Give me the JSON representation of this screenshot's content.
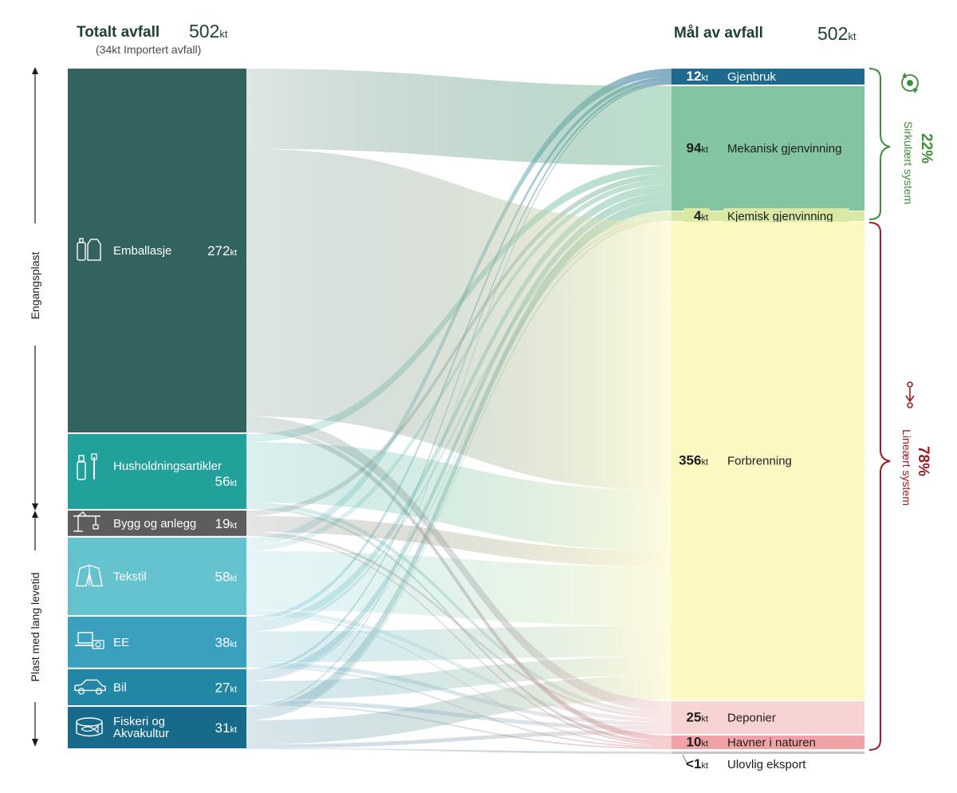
{
  "header": {
    "left_title": "Totalt avfall",
    "left_total_value": "502",
    "left_total_unit": "kt",
    "left_subtitle": "(34kt Importert avfall)",
    "right_title": "Mål av avfall",
    "right_total_value": "502",
    "right_total_unit": "kt"
  },
  "side_labels": {
    "top": "Engangsplast",
    "bottom": "Plast med lang levetid"
  },
  "sources": [
    {
      "id": "emballasje",
      "label": "Emballasje",
      "value": 272,
      "value_text": "272",
      "unit": "kt",
      "color": "#33635e",
      "icon": "bottle-and-carton-icon"
    },
    {
      "id": "husholdning",
      "label": "Husholdningsartikler",
      "value": 56,
      "value_text": "56",
      "unit": "kt",
      "color": "#22a09a",
      "icon": "spray-and-toothbrush-icon"
    },
    {
      "id": "bygg",
      "label": "Bygg og anlegg",
      "value": 19,
      "value_text": "19",
      "unit": "kt",
      "color": "#5d5d5b",
      "icon": "crane-icon"
    },
    {
      "id": "tekstil",
      "label": "Tekstil",
      "value": 58,
      "value_text": "58",
      "unit": "kt",
      "color": "#64c3cf",
      "icon": "jacket-icon"
    },
    {
      "id": "ee",
      "label": "EE",
      "value": 38,
      "value_text": "38",
      "unit": "kt",
      "color": "#3aa0bd",
      "icon": "laptop-and-camera-icon"
    },
    {
      "id": "bil",
      "label": "Bil",
      "value": 27,
      "value_text": "27",
      "unit": "kt",
      "color": "#2286a5",
      "icon": "car-icon"
    },
    {
      "id": "fiskeri",
      "label": "Fiskeri og",
      "label2": "Akvakultur",
      "value": 31,
      "value_text": "31",
      "unit": "kt",
      "color": "#176a89",
      "icon": "fish-tin-icon"
    }
  ],
  "targets": [
    {
      "id": "gjenbruk",
      "label": "Gjenbruk",
      "value": 12,
      "value_text": "12",
      "unit": "kt",
      "color": "#1d6a8e",
      "text_color": "#ffffff"
    },
    {
      "id": "mekanisk",
      "label": "Mekanisk gjenvinning",
      "value": 94,
      "value_text": "94",
      "unit": "kt",
      "color": "#83c5a1",
      "text_color": "#1d1d1d"
    },
    {
      "id": "kjemisk",
      "label": "Kjemisk gjenvinning",
      "value": 4,
      "value_text": "4",
      "unit": "kt",
      "color": "#d9e9a3",
      "text_color": "#1d1d1d"
    },
    {
      "id": "forbrenning",
      "label": "Forbrenning",
      "value": 356,
      "value_text": "356",
      "unit": "kt",
      "color": "#fdf7c2",
      "text_color": "#1d1d1d"
    },
    {
      "id": "deponier",
      "label": "Deponier",
      "value": 25,
      "value_text": "25",
      "unit": "kt",
      "color": "#f8d3d3",
      "text_color": "#1d1d1d"
    },
    {
      "id": "havner",
      "label": "Havner i naturen",
      "value": 10,
      "value_text": "10",
      "unit": "kt",
      "color": "#f0a3a6",
      "text_color": "#1d1d1d"
    },
    {
      "id": "ulovlig",
      "label": "Ulovlig eksport",
      "value": 0.5,
      "value_text": "<1",
      "unit": "kt",
      "color": "#c4c6c9",
      "text_color": "#1d1d1d"
    }
  ],
  "groups": [
    {
      "id": "sirkulaert",
      "percent": "22%",
      "label": "Sirkulært system",
      "color": "#3f8d3b",
      "icon": "recycle-icon"
    },
    {
      "id": "linaert",
      "percent": "78%",
      "label": "Lineært system",
      "color": "#9d1c24",
      "icon": "linear-arrow-icon"
    }
  ],
  "chart_data": {
    "type": "sankey",
    "unit": "kt",
    "nodes_left": [
      "Emballasje",
      "Husholdningsartikler",
      "Bygg og anlegg",
      "Tekstil",
      "EE",
      "Bil",
      "Fiskeri og Akvakultur"
    ],
    "nodes_right": [
      "Gjenbruk",
      "Mekanisk gjenvinning",
      "Kjemisk gjenvinning",
      "Forbrenning",
      "Deponier",
      "Havner i naturen",
      "Ulovlig eksport"
    ],
    "links": [
      {
        "source": "emballasje",
        "target": "mekanisk",
        "value": 60
      },
      {
        "source": "emballasje",
        "target": "forbrenning",
        "value": 200
      },
      {
        "source": "emballasje",
        "target": "deponier",
        "value": 8
      },
      {
        "source": "emballasje",
        "target": "havner",
        "value": 4
      },
      {
        "source": "husholdning",
        "target": "mekanisk",
        "value": 6
      },
      {
        "source": "husholdning",
        "target": "forbrenning",
        "value": 45
      },
      {
        "source": "husholdning",
        "target": "deponier",
        "value": 3
      },
      {
        "source": "husholdning",
        "target": "havner",
        "value": 2
      },
      {
        "source": "bygg",
        "target": "mekanisk",
        "value": 4
      },
      {
        "source": "bygg",
        "target": "forbrenning",
        "value": 12
      },
      {
        "source": "bygg",
        "target": "deponier",
        "value": 2
      },
      {
        "source": "bygg",
        "target": "havner",
        "value": 1
      },
      {
        "source": "tekstil",
        "target": "gjenbruk",
        "value": 6
      },
      {
        "source": "tekstil",
        "target": "mekanisk",
        "value": 4
      },
      {
        "source": "tekstil",
        "target": "forbrenning",
        "value": 44
      },
      {
        "source": "tekstil",
        "target": "deponier",
        "value": 3
      },
      {
        "source": "tekstil",
        "target": "havner",
        "value": 1
      },
      {
        "source": "ee",
        "target": "gjenbruk",
        "value": 3
      },
      {
        "source": "ee",
        "target": "mekanisk",
        "value": 6
      },
      {
        "source": "ee",
        "target": "kjemisk",
        "value": 2
      },
      {
        "source": "ee",
        "target": "forbrenning",
        "value": 23
      },
      {
        "source": "ee",
        "target": "deponier",
        "value": 3
      },
      {
        "source": "ee",
        "target": "havner",
        "value": 1
      },
      {
        "source": "bil",
        "target": "gjenbruk",
        "value": 2
      },
      {
        "source": "bil",
        "target": "mekanisk",
        "value": 6
      },
      {
        "source": "bil",
        "target": "kjemisk",
        "value": 1
      },
      {
        "source": "bil",
        "target": "forbrenning",
        "value": 14
      },
      {
        "source": "bil",
        "target": "deponier",
        "value": 3
      },
      {
        "source": "bil",
        "target": "havner",
        "value": 1
      },
      {
        "source": "fiskeri",
        "target": "gjenbruk",
        "value": 1
      },
      {
        "source": "fiskeri",
        "target": "mekanisk",
        "value": 8
      },
      {
        "source": "fiskeri",
        "target": "kjemisk",
        "value": 1
      },
      {
        "source": "fiskeri",
        "target": "forbrenning",
        "value": 18
      },
      {
        "source": "fiskeri",
        "target": "deponier",
        "value": 3
      },
      {
        "source": "fiskeri",
        "target": "ulovlig",
        "value": 0.5
      }
    ]
  }
}
